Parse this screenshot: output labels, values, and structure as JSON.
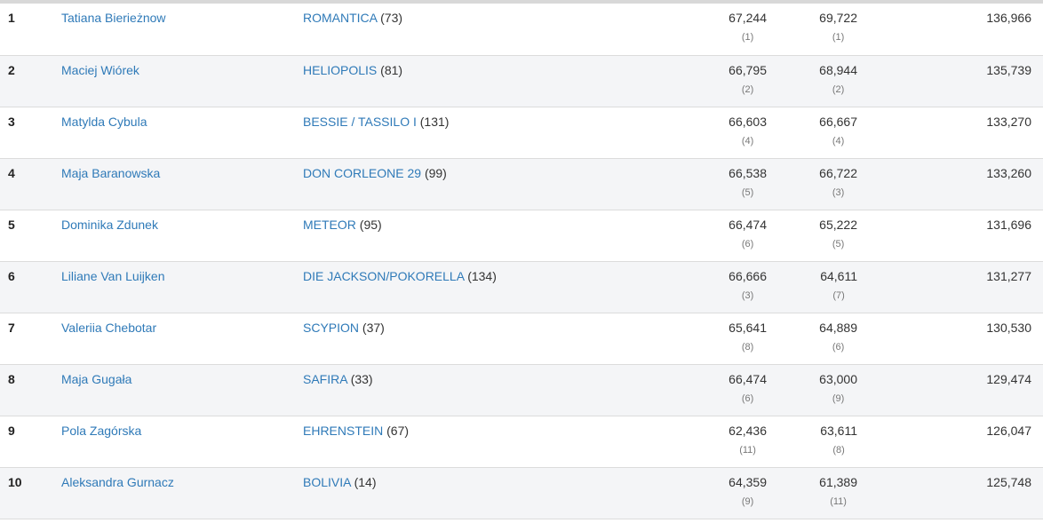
{
  "rows": [
    {
      "rank": "1",
      "rider": "Tatiana Bierieżnow",
      "horse": "ROMANTICA",
      "horse_no": "(73)",
      "r1": "67,244",
      "r1_pos": "(1)",
      "r2": "69,722",
      "r2_pos": "(1)",
      "total": "136,966"
    },
    {
      "rank": "2",
      "rider": "Maciej Wiórek",
      "horse": "HELIOPOLIS",
      "horse_no": "(81)",
      "r1": "66,795",
      "r1_pos": "(2)",
      "r2": "68,944",
      "r2_pos": "(2)",
      "total": "135,739"
    },
    {
      "rank": "3",
      "rider": "Matylda Cybula",
      "horse": "BESSIE / TASSILO I",
      "horse_no": "(131)",
      "r1": "66,603",
      "r1_pos": "(4)",
      "r2": "66,667",
      "r2_pos": "(4)",
      "total": "133,270"
    },
    {
      "rank": "4",
      "rider": "Maja Baranowska",
      "horse": "DON CORLEONE 29",
      "horse_no": "(99)",
      "r1": "66,538",
      "r1_pos": "(5)",
      "r2": "66,722",
      "r2_pos": "(3)",
      "total": "133,260"
    },
    {
      "rank": "5",
      "rider": "Dominika Zdunek",
      "horse": "METEOR",
      "horse_no": "(95)",
      "r1": "66,474",
      "r1_pos": "(6)",
      "r2": "65,222",
      "r2_pos": "(5)",
      "total": "131,696"
    },
    {
      "rank": "6",
      "rider": "Liliane Van Luijken",
      "horse": "DIE JACKSON/POKORELLA",
      "horse_no": "(134)",
      "r1": "66,666",
      "r1_pos": "(3)",
      "r2": "64,611",
      "r2_pos": "(7)",
      "total": "131,277"
    },
    {
      "rank": "7",
      "rider": "Valeriia Chebotar",
      "horse": "SCYPION",
      "horse_no": "(37)",
      "r1": "65,641",
      "r1_pos": "(8)",
      "r2": "64,889",
      "r2_pos": "(6)",
      "total": "130,530"
    },
    {
      "rank": "8",
      "rider": "Maja Gugała",
      "horse": "SAFIRA",
      "horse_no": "(33)",
      "r1": "66,474",
      "r1_pos": "(6)",
      "r2": "63,000",
      "r2_pos": "(9)",
      "total": "129,474"
    },
    {
      "rank": "9",
      "rider": "Pola Zagórska",
      "horse": "EHRENSTEIN",
      "horse_no": "(67)",
      "r1": "62,436",
      "r1_pos": "(11)",
      "r2": "63,611",
      "r2_pos": "(8)",
      "total": "126,047"
    },
    {
      "rank": "10",
      "rider": "Aleksandra Gurnacz",
      "horse": "BOLIVIA",
      "horse_no": "(14)",
      "r1": "64,359",
      "r1_pos": "(9)",
      "r2": "61,389",
      "r2_pos": "(11)",
      "total": "125,748"
    }
  ],
  "colors": {
    "link": "#2f7ab8",
    "stripe": "#f4f5f7",
    "border": "#dcdcdc"
  }
}
